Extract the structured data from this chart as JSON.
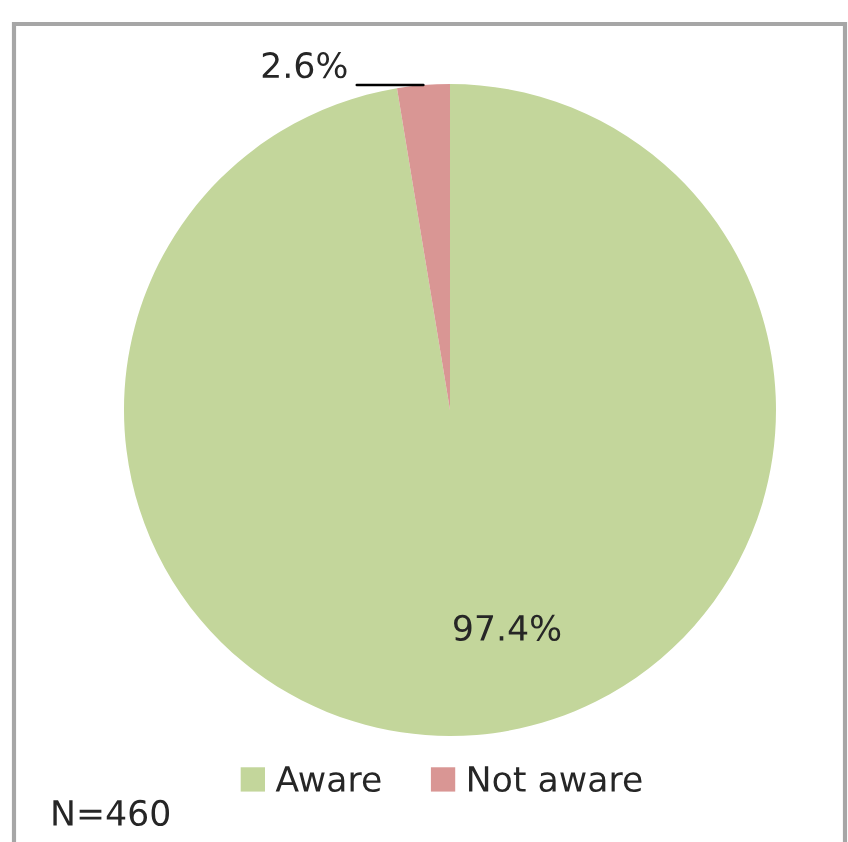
{
  "chart_data": {
    "type": "pie",
    "categories": [
      "Aware",
      "Not aware"
    ],
    "values": [
      97.4,
      2.6
    ],
    "colors": [
      "#c3d69b",
      "#d99694"
    ],
    "value_labels": [
      "97.4%",
      "2.6%"
    ],
    "legend": "bottom",
    "annotations": [
      "N=460"
    ]
  }
}
